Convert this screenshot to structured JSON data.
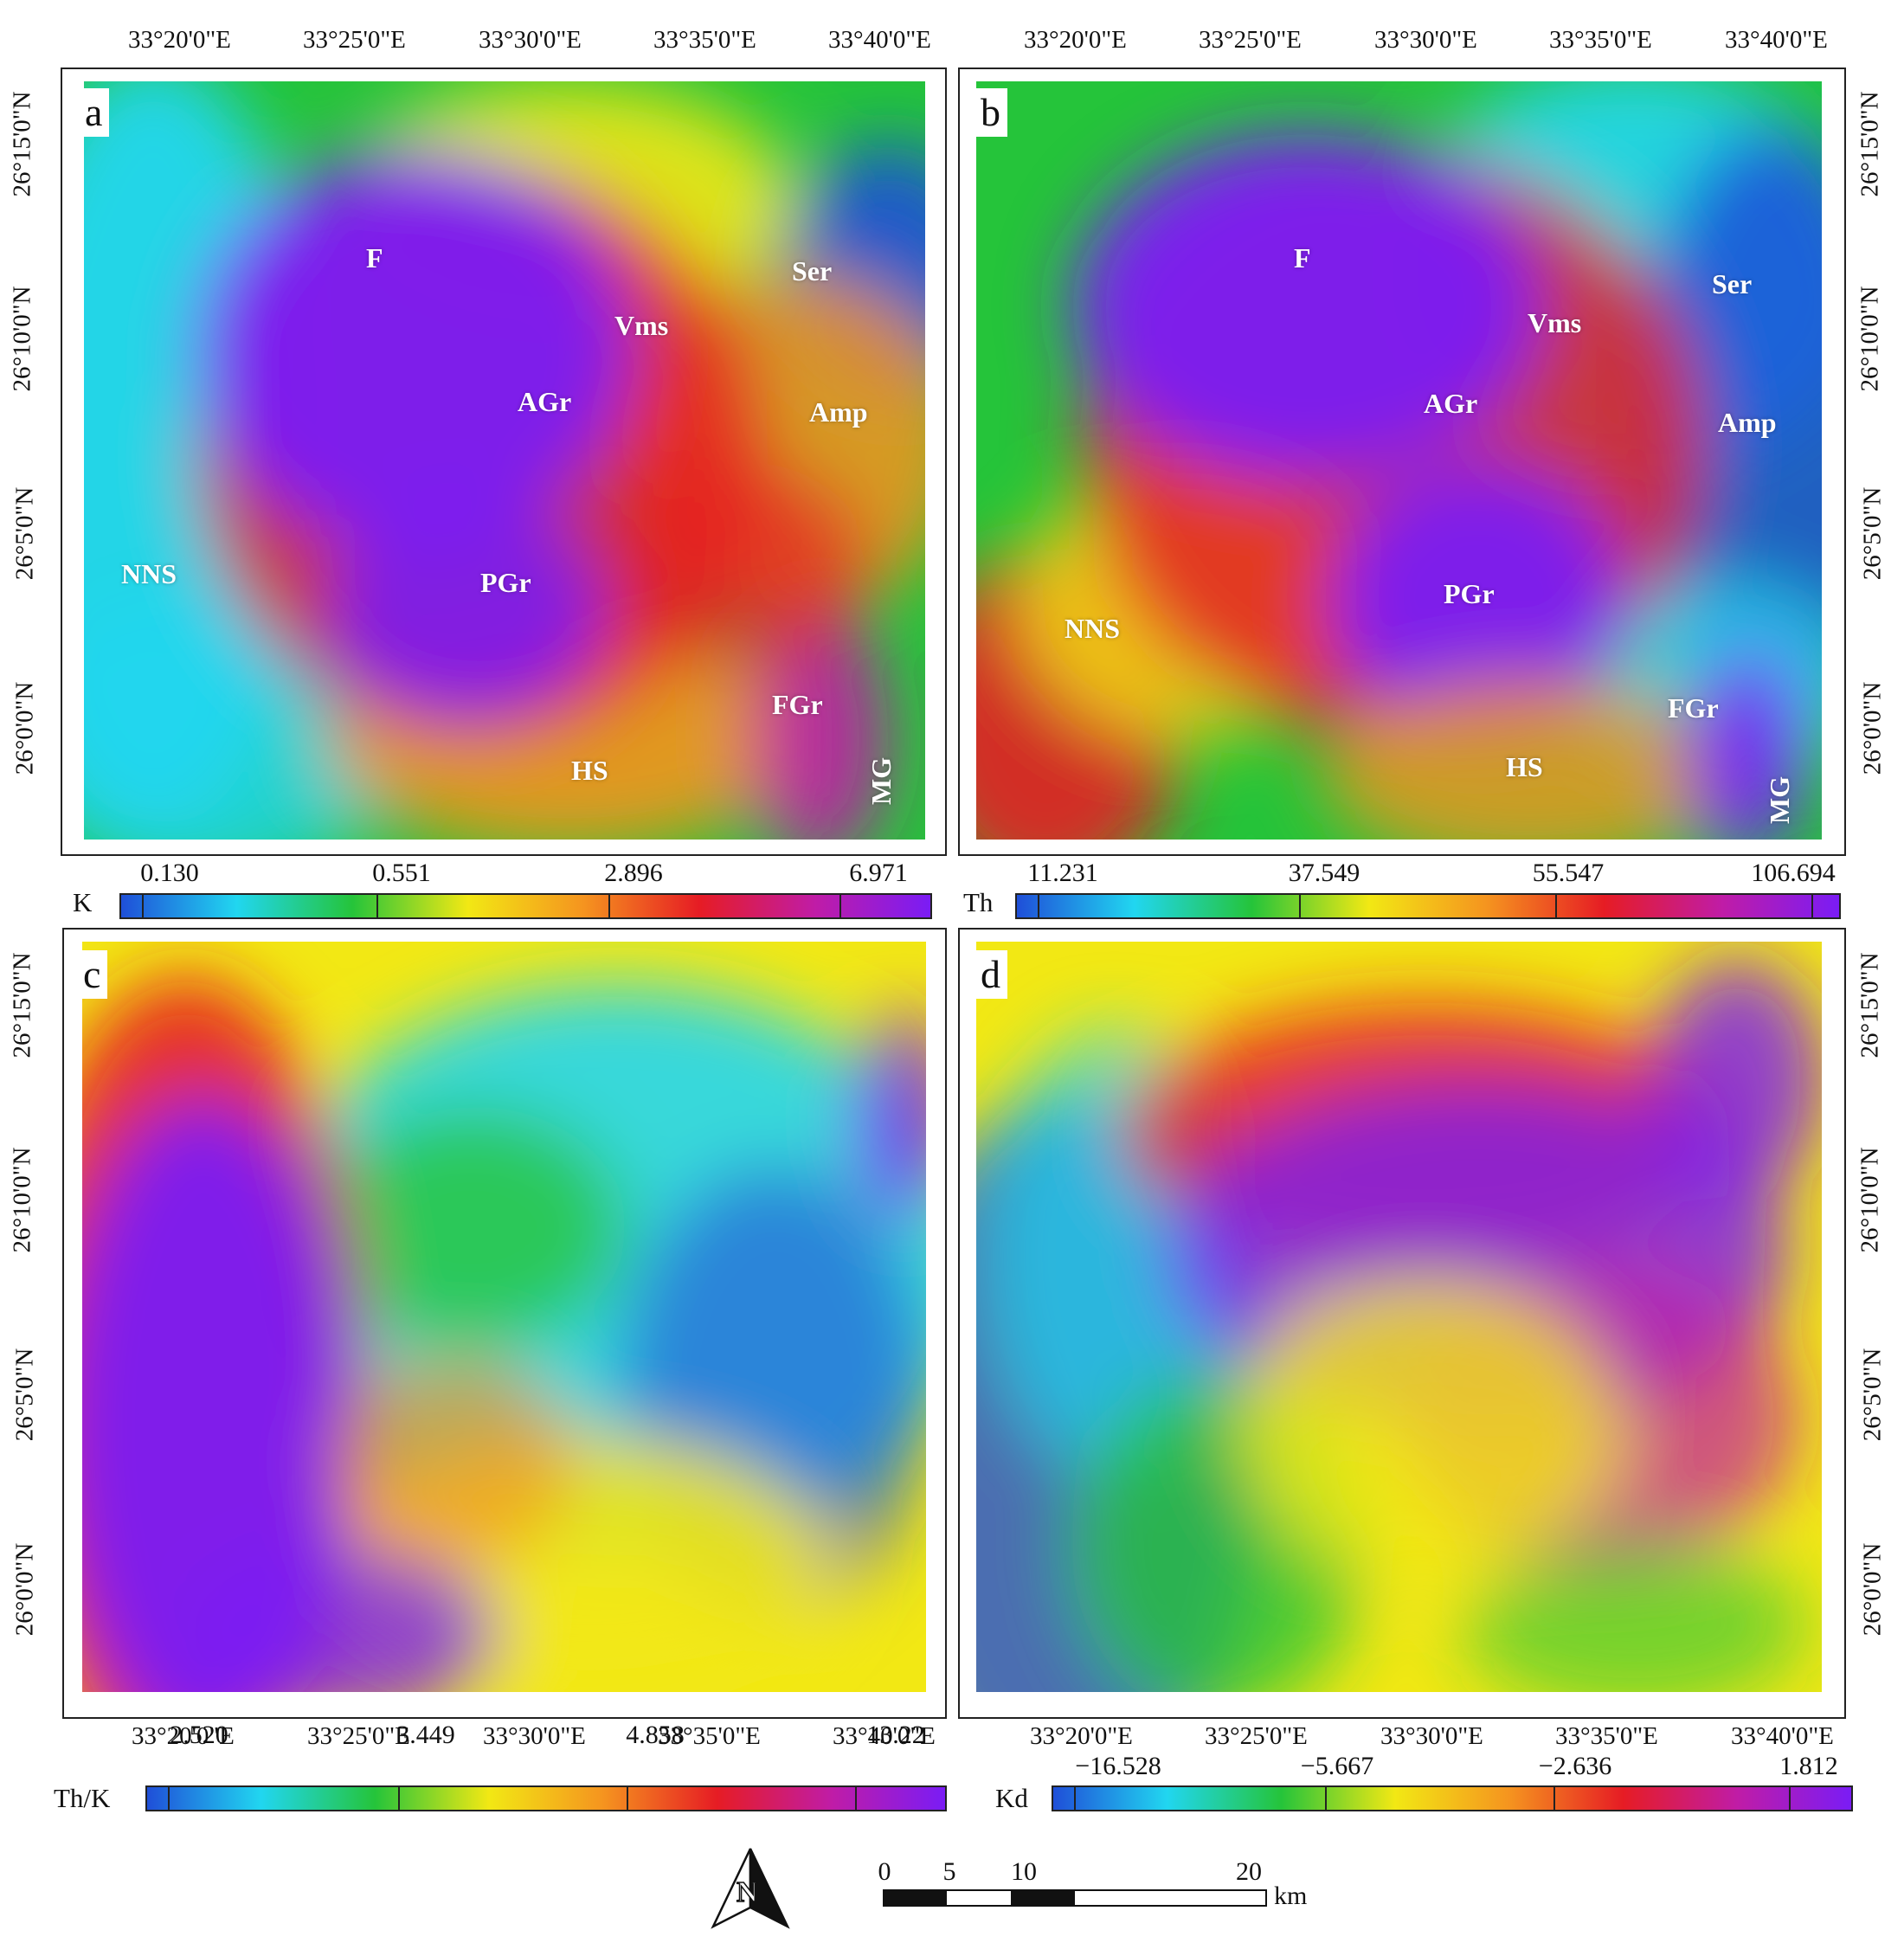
{
  "colors": {
    "blue": "#1f4fd8",
    "cyan": "#21d6f0",
    "green": "#25c43a",
    "yellow": "#f2e814",
    "orange": "#f5941f",
    "red": "#e61c24",
    "magenta": "#c01ca6",
    "purple": "#7a1cf5"
  },
  "top_lon_ticks": [
    "33°20'0\"E",
    "33°25'0\"E",
    "33°30'0\"E",
    "33°35'0\"E",
    "33°40'0\"E"
  ],
  "bottom_lon_ticks": [
    "33°20'0\"E",
    "33°25'0\"E",
    "33°30'0\"E",
    "33°35'0\"E",
    "33°40'0\"E"
  ],
  "lat_ticks": [
    "26°15'0\"N",
    "26°10'0\"N",
    "26°5'0\"N",
    "26°0'0\"N"
  ],
  "panels": {
    "a": {
      "letter": "a",
      "colorbar": {
        "name": "K",
        "values": [
          "0.130",
          "0.551",
          "2.896",
          "6.971"
        ]
      },
      "units": [
        "F",
        "Vms",
        "Ser",
        "AGr",
        "Amp",
        "NNS",
        "PGr",
        "FGr",
        "HS",
        "MG"
      ]
    },
    "b": {
      "letter": "b",
      "colorbar": {
        "name": "Th",
        "values": [
          "11.231",
          "37.549",
          "55.547",
          "106.694"
        ]
      },
      "units": [
        "F",
        "Vms",
        "Ser",
        "AGr",
        "Amp",
        "NNS",
        "PGr",
        "FGr",
        "HS",
        "MG"
      ]
    },
    "c": {
      "letter": "c",
      "colorbar": {
        "name": "Th/K",
        "values": [
          "2.520",
          "3.449",
          "4.858",
          "13.22"
        ]
      }
    },
    "d": {
      "letter": "d",
      "colorbar": {
        "name": "Kd",
        "values": [
          "−16.528",
          "−5.667",
          "−2.636",
          "1.812"
        ]
      }
    }
  },
  "north_arrow": {
    "letter": "N"
  },
  "scale_bar": {
    "ticks": [
      "0",
      "5",
      "10",
      "20"
    ],
    "unit": "km"
  }
}
